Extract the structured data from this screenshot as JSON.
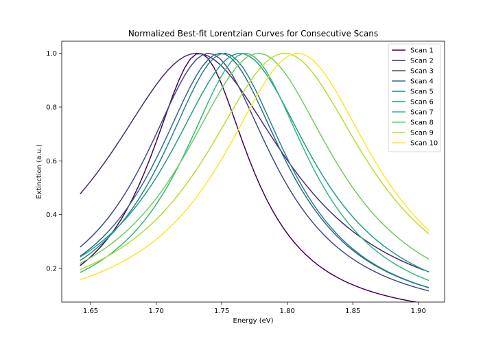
{
  "chart_data": {
    "type": "line",
    "title": "Normalized Best-fit Lorentzian Curves for Consecutive Scans",
    "xlabel": "Energy (eV)",
    "ylabel": "Extinction (a.u.)",
    "xlim": [
      1.628,
      1.92
    ],
    "ylim": [
      0.075,
      1.045
    ],
    "xticks": [
      1.65,
      1.7,
      1.75,
      1.8,
      1.85,
      1.9
    ],
    "xtick_labels": [
      "1.65",
      "1.70",
      "1.75",
      "1.80",
      "1.85",
      "1.90"
    ],
    "yticks": [
      0.2,
      0.4,
      0.6,
      0.8,
      1.0
    ],
    "ytick_labels": [
      "0.2",
      "0.4",
      "0.6",
      "0.8",
      "1.0"
    ],
    "grid": false,
    "legend_position": "top-right",
    "x_range": [
      1.642,
      1.908
    ],
    "series": [
      {
        "name": "Scan 1",
        "center": 1.733,
        "gamma": 0.047,
        "color": "#440154"
      },
      {
        "name": "Scan 2",
        "center": 1.731,
        "gamma": 0.085,
        "color": "#482878"
      },
      {
        "name": "Scan 3",
        "center": 1.74,
        "gamma": 0.061,
        "color": "#3e4989"
      },
      {
        "name": "Scan 4",
        "center": 1.749,
        "gamma": 0.061,
        "color": "#31688e"
      },
      {
        "name": "Scan 5",
        "center": 1.752,
        "gamma": 0.06,
        "color": "#26828e"
      },
      {
        "name": "Scan 6",
        "center": 1.764,
        "gamma": 0.069,
        "color": "#1f9e89"
      },
      {
        "name": "Scan 7",
        "center": 1.768,
        "gamma": 0.06,
        "color": "#35b779"
      },
      {
        "name": "Scan 8",
        "center": 1.778,
        "gamma": 0.072,
        "color": "#6ece58"
      },
      {
        "name": "Scan 9",
        "center": 1.798,
        "gamma": 0.077,
        "color": "#b5de2b"
      },
      {
        "name": "Scan 10",
        "center": 1.808,
        "gamma": 0.072,
        "color": "#fde725"
      }
    ]
  }
}
